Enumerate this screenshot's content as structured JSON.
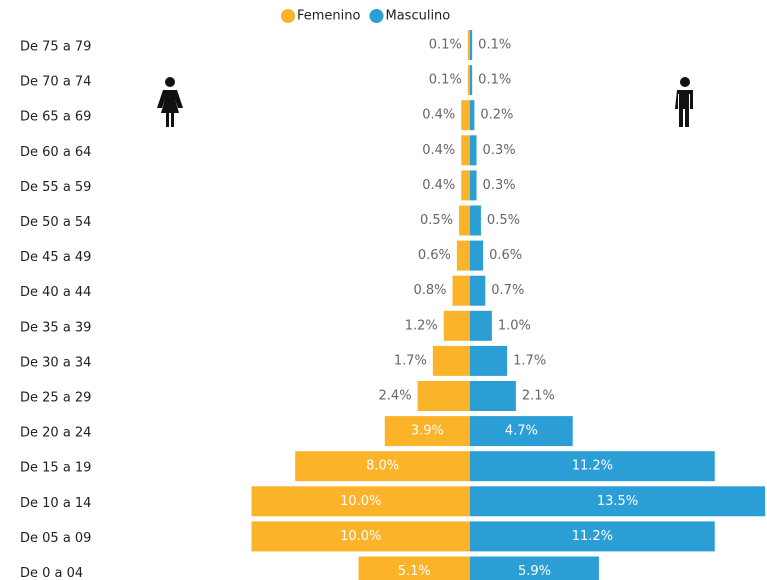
{
  "chart_data": {
    "type": "pyramid",
    "categories": [
      "De 75 a 79",
      "De 70 a 74",
      "De 65 a 69",
      "De 60 a 64",
      "De 55 a 59",
      "De 50 a 54",
      "De 45 a 49",
      "De 40 a 44",
      "De 35 a 39",
      "De 30 a 34",
      "De 25 a 29",
      "De 20 a 24",
      "De 15 a 19",
      "De 10 a 14",
      "De 05 a 09",
      "De 0 a 04"
    ],
    "legend": "top",
    "series": [
      {
        "name": "Femenino",
        "color": "#fbb32a",
        "side": "left",
        "values": [
          0.1,
          0.1,
          0.4,
          0.4,
          0.4,
          0.5,
          0.6,
          0.8,
          1.2,
          1.7,
          2.4,
          3.9,
          8.0,
          10.0,
          10.0,
          5.1
        ],
        "value_labels": [
          "0.1%",
          "0.1%",
          "0.4%",
          "0.4%",
          "0.4%",
          "0.5%",
          "0.6%",
          "0.8%",
          "1.2%",
          "1.7%",
          "2.4%",
          "3.9%",
          "8.0%",
          "10.0%",
          "10.0%",
          "5.1%"
        ]
      },
      {
        "name": "Masculino",
        "color": "#2b9fd5",
        "side": "right",
        "values": [
          0.1,
          0.1,
          0.2,
          0.3,
          0.3,
          0.5,
          0.6,
          0.7,
          1.0,
          1.7,
          2.1,
          4.7,
          11.2,
          13.5,
          11.2,
          5.9
        ],
        "value_labels": [
          "0.1%",
          "0.1%",
          "0.2%",
          "0.3%",
          "0.3%",
          "0.5%",
          "0.6%",
          "0.7%",
          "1.0%",
          "1.7%",
          "2.1%",
          "4.7%",
          "11.2%",
          "13.5%",
          "11.2%",
          "5.9%"
        ]
      }
    ]
  }
}
